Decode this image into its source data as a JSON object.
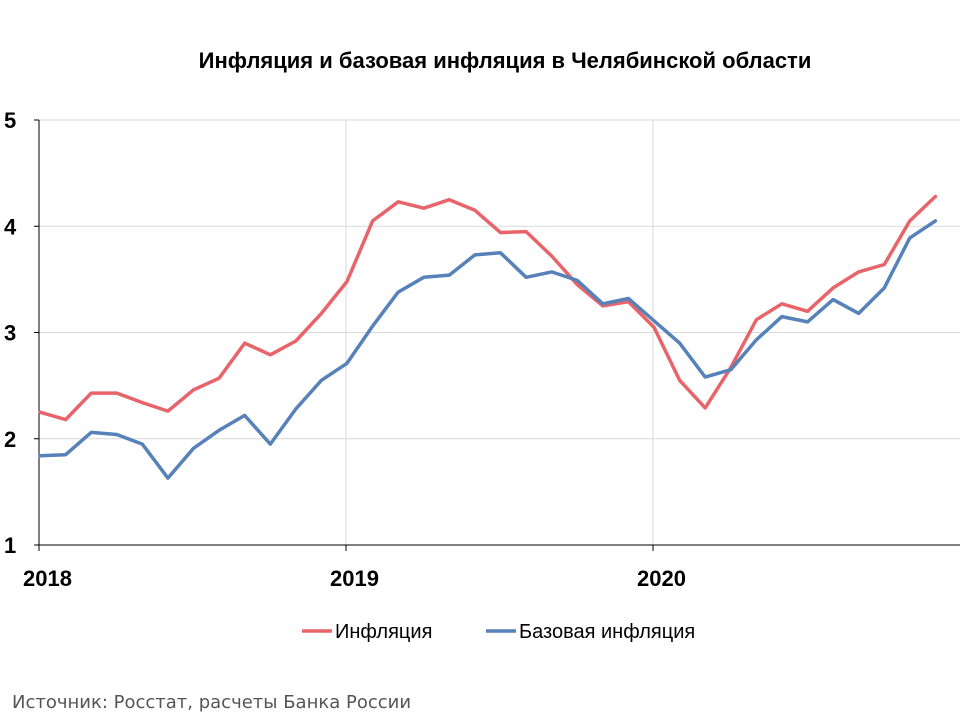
{
  "chart_data": {
    "type": "line",
    "title": "Инфляция и базовая инфляция в Челябинской области",
    "xlabel": "",
    "ylabel": "",
    "ylim": [
      1,
      5
    ],
    "yticks": [
      "1",
      "2",
      "3",
      "4",
      "5"
    ],
    "xticks": [
      "2018",
      "2019",
      "2020"
    ],
    "x": [
      "2018-01",
      "2018-02",
      "2018-03",
      "2018-04",
      "2018-05",
      "2018-06",
      "2018-07",
      "2018-08",
      "2018-09",
      "2018-10",
      "2018-11",
      "2018-12",
      "2019-01",
      "2019-02",
      "2019-03",
      "2019-04",
      "2019-05",
      "2019-06",
      "2019-07",
      "2019-08",
      "2019-09",
      "2019-10",
      "2019-11",
      "2019-12",
      "2020-01",
      "2020-02",
      "2020-03",
      "2020-04",
      "2020-05",
      "2020-06",
      "2020-07",
      "2020-08",
      "2020-09",
      "2020-10",
      "2020-11",
      "2020-12"
    ],
    "grid": true,
    "legend_position": "bottom",
    "series": [
      {
        "name": "Инфляция",
        "color": "#e8646a",
        "values": [
          2.25,
          2.18,
          2.43,
          2.43,
          2.34,
          2.26,
          2.46,
          2.57,
          2.9,
          2.79,
          2.92,
          3.18,
          3.48,
          4.05,
          4.23,
          4.17,
          4.25,
          4.15,
          3.94,
          3.95,
          3.72,
          3.45,
          3.25,
          3.29,
          3.05,
          2.55,
          2.29,
          2.67,
          3.12,
          3.27,
          3.2,
          3.42,
          3.57,
          3.64,
          4.05,
          4.28
        ]
      },
      {
        "name": "Базовая инфляция",
        "color": "#5681b9",
        "values": [
          1.84,
          1.85,
          2.06,
          2.04,
          1.95,
          1.63,
          1.91,
          2.08,
          2.22,
          1.95,
          2.28,
          2.55,
          2.71,
          3.06,
          3.38,
          3.52,
          3.54,
          3.73,
          3.75,
          3.52,
          3.57,
          3.49,
          3.27,
          3.32,
          3.11,
          2.9,
          2.58,
          2.65,
          2.93,
          3.15,
          3.1,
          3.31,
          3.18,
          3.42,
          3.89,
          4.05
        ]
      }
    ]
  },
  "source": "Источник: Росстат, расчеты Банка России"
}
